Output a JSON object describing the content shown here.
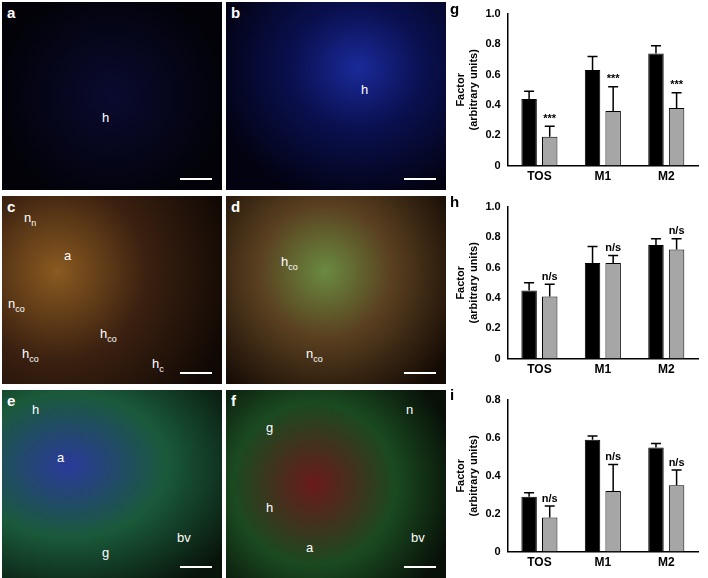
{
  "chart_data": [
    {
      "type": "bar",
      "panel": "g",
      "y_label": [
        "Factor",
        "(arbitrary units)"
      ],
      "categories": [
        "TOS",
        "M1",
        "M2"
      ],
      "series": [
        {
          "color": "#000000",
          "values": [
            0.44,
            0.63,
            0.74
          ],
          "errors": [
            0.05,
            0.09,
            0.05
          ]
        },
        {
          "color": "#a6a6a6",
          "values": [
            0.19,
            0.36,
            0.38
          ],
          "errors": [
            0.07,
            0.16,
            0.1
          ],
          "annotations": [
            "***",
            "***",
            "***"
          ]
        }
      ],
      "ylim": [
        0,
        1
      ],
      "yticks": [
        0,
        0.2,
        0.4,
        0.6,
        0.8,
        {
          "value": 1,
          "label": "1.0"
        }
      ],
      "grid": false
    },
    {
      "type": "bar",
      "panel": "h",
      "y_label": [
        "Factor",
        "(arbitrary units)"
      ],
      "categories": [
        "TOS",
        "M1",
        "M2"
      ],
      "series": [
        {
          "color": "#000000",
          "values": [
            0.45,
            0.63,
            0.75
          ],
          "errors": [
            0.05,
            0.11,
            0.04
          ]
        },
        {
          "color": "#a6a6a6",
          "values": [
            0.41,
            0.63,
            0.72
          ],
          "errors": [
            0.08,
            0.05,
            0.07
          ],
          "annotations": [
            "n/s",
            "n/s",
            "n/s"
          ]
        }
      ],
      "ylim": [
        0,
        1
      ],
      "yticks": [
        0,
        0.2,
        0.4,
        0.6,
        0.8,
        {
          "value": 1,
          "label": "1.0"
        }
      ],
      "grid": false
    },
    {
      "type": "bar",
      "panel": "i",
      "y_label": [
        "Factor",
        "(arbitrary units)"
      ],
      "categories": [
        "TOS",
        "M1",
        "M2"
      ],
      "series": [
        {
          "color": "#000000",
          "values": [
            0.29,
            0.59,
            0.55
          ],
          "errors": [
            0.02,
            0.02,
            0.02
          ]
        },
        {
          "color": "#a6a6a6",
          "values": [
            0.18,
            0.32,
            0.35
          ],
          "errors": [
            0.06,
            0.14,
            0.08
          ],
          "annotations": [
            "n/s",
            "n/s",
            "n/s"
          ]
        }
      ],
      "ylim": [
        0,
        0.8
      ],
      "yticks": [
        0,
        0.2,
        0.4,
        0.6,
        0.8
      ],
      "grid": false
    }
  ],
  "image_panels": [
    {
      "letter": "a",
      "labels": [
        {
          "base": "h"
        }
      ]
    },
    {
      "letter": "b",
      "labels": [
        {
          "base": "h"
        }
      ]
    },
    {
      "letter": "c",
      "labels": [
        {
          "base": "n",
          "sub": "n"
        },
        {
          "base": "a"
        },
        {
          "base": "n",
          "sub": "co"
        },
        {
          "base": "h",
          "sub": "co"
        },
        {
          "base": "h",
          "sub": "co"
        },
        {
          "base": "h",
          "sub": "c"
        }
      ]
    },
    {
      "letter": "d",
      "labels": [
        {
          "base": "h",
          "sub": "co"
        },
        {
          "base": "n",
          "sub": "co"
        }
      ]
    },
    {
      "letter": "e",
      "labels": [
        {
          "base": "h"
        },
        {
          "base": "a"
        },
        {
          "base": "g"
        },
        {
          "base": "bv"
        }
      ]
    },
    {
      "letter": "f",
      "labels": [
        {
          "base": "g"
        },
        {
          "base": "n"
        },
        {
          "base": "h"
        },
        {
          "base": "a"
        },
        {
          "base": "bv"
        }
      ]
    }
  ]
}
